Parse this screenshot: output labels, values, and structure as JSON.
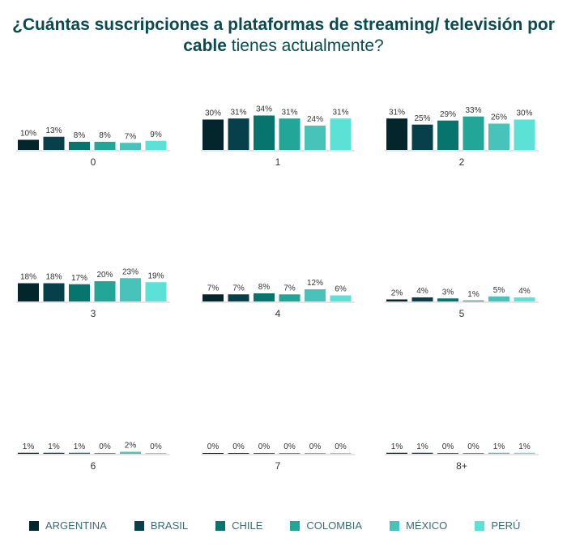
{
  "chart_data": {
    "type": "bar",
    "title_bold": "¿Cuántas suscripciones a plataformas de streaming/ televisión por cable",
    "title_regular": "tienes actualmente?",
    "series_names": [
      "ARGENTINA",
      "BRASIL",
      "CHILE",
      "COLOMBIA",
      "MÉXICO",
      "PERÚ"
    ],
    "colors": [
      "#02262b",
      "#073f4a",
      "#07756e",
      "#22a698",
      "#47c3b9",
      "#5ce1d6"
    ],
    "unit": "%",
    "panels": [
      {
        "category": "0",
        "values": [
          10,
          13,
          8,
          8,
          7,
          9
        ]
      },
      {
        "category": "1",
        "values": [
          30,
          31,
          34,
          31,
          24,
          31
        ]
      },
      {
        "category": "2",
        "values": [
          31,
          25,
          29,
          33,
          26,
          30
        ]
      },
      {
        "category": "3",
        "values": [
          18,
          18,
          17,
          20,
          23,
          19
        ]
      },
      {
        "category": "4",
        "values": [
          7,
          7,
          8,
          7,
          12,
          6
        ]
      },
      {
        "category": "5",
        "values": [
          2,
          4,
          3,
          1,
          5,
          4
        ]
      },
      {
        "category": "6",
        "values": [
          1,
          1,
          1,
          0,
          2,
          0
        ]
      },
      {
        "category": "7",
        "values": [
          0,
          0,
          0,
          0,
          0,
          0
        ]
      },
      {
        "category": "8+",
        "values": [
          1,
          1,
          0,
          0,
          1,
          1
        ]
      }
    ]
  }
}
